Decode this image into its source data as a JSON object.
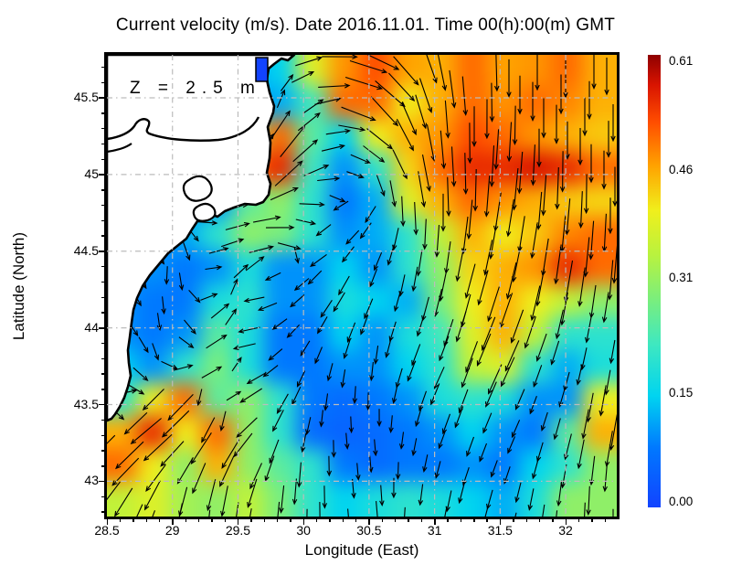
{
  "chart_data": {
    "type": "heatmap",
    "title": "Current velocity (m/s). Date 2016.11.01. Time 00(h):00(m) GMT",
    "units": "m/s",
    "depth_annotation": "Z = 2.5 m",
    "xlabel": "Longitude (East)",
    "ylabel": "Latitude (North)",
    "x_ticks": [
      28.5,
      29,
      29.5,
      30,
      30.5,
      31,
      31.5,
      32
    ],
    "y_ticks": [
      45.5,
      45,
      44.5,
      44,
      43.5,
      43
    ],
    "xlim": [
      28.5,
      32.39
    ],
    "ylim": [
      42.77,
      45.78
    ],
    "grid_on": true,
    "overlay": "black arrows show current direction/speed; white land mask with Danube delta coastline in upper left; dash-dot gray graticule every 0.5 degree",
    "colorbar": {
      "min": 0.0,
      "max": 0.61,
      "tick_labels_top_to_bottom": [
        "0.61",
        "0.46",
        "0.31",
        "0.15",
        "0.00"
      ],
      "colormap_stops": [
        [
          0.0,
          "#1243ff"
        ],
        [
          0.08,
          "#0078ff"
        ],
        [
          0.15,
          "#00d4f0"
        ],
        [
          0.22,
          "#3fe8c0"
        ],
        [
          0.28,
          "#7aee7d"
        ],
        [
          0.34,
          "#b8f23f"
        ],
        [
          0.4,
          "#f0ef1c"
        ],
        [
          0.46,
          "#ffa300"
        ],
        [
          0.52,
          "#ff4d00"
        ],
        [
          0.57,
          "#d81400"
        ],
        [
          0.61,
          "#8f0000"
        ]
      ]
    },
    "grid_lon": [
      28.62,
      28.86,
      29.1,
      29.35,
      29.59,
      29.83,
      30.08,
      30.32,
      30.56,
      30.81,
      31.05,
      31.29,
      31.54,
      31.78,
      32.02,
      32.27
    ],
    "grid_lat": [
      45.67,
      45.46,
      45.24,
      45.02,
      44.81,
      44.59,
      44.38,
      44.16,
      43.95,
      43.73,
      43.52,
      43.3,
      43.09,
      42.87
    ],
    "speed_grid": [
      [
        0.1,
        0.1,
        0.1,
        0.1,
        0.12,
        0.15,
        0.38,
        0.47,
        0.52,
        0.46,
        0.45,
        0.5,
        0.46,
        0.47,
        0.5,
        0.45
      ],
      [
        0.1,
        0.1,
        0.1,
        0.1,
        0.1,
        0.12,
        0.22,
        0.5,
        0.5,
        0.4,
        0.45,
        0.5,
        0.47,
        0.5,
        0.48,
        0.45
      ],
      [
        0.1,
        0.1,
        0.1,
        0.1,
        0.3,
        0.5,
        0.25,
        0.15,
        0.4,
        0.45,
        0.47,
        0.52,
        0.5,
        0.47,
        0.45,
        0.43
      ],
      [
        0.1,
        0.1,
        0.1,
        0.1,
        0.5,
        0.55,
        0.22,
        0.1,
        0.2,
        0.42,
        0.5,
        0.55,
        0.55,
        0.57,
        0.55,
        0.5
      ],
      [
        0.1,
        0.1,
        0.1,
        0.1,
        0.25,
        0.3,
        0.2,
        0.08,
        0.12,
        0.38,
        0.45,
        0.5,
        0.47,
        0.45,
        0.43,
        0.42
      ],
      [
        0.1,
        0.1,
        0.12,
        0.2,
        0.3,
        0.28,
        0.2,
        0.1,
        0.12,
        0.2,
        0.35,
        0.45,
        0.4,
        0.43,
        0.48,
        0.5
      ],
      [
        0.1,
        0.1,
        0.08,
        0.1,
        0.18,
        0.1,
        0.1,
        0.15,
        0.1,
        0.2,
        0.3,
        0.42,
        0.45,
        0.47,
        0.55,
        0.5
      ],
      [
        0.1,
        0.08,
        0.08,
        0.18,
        0.2,
        0.1,
        0.1,
        0.18,
        0.15,
        0.12,
        0.28,
        0.4,
        0.45,
        0.4,
        0.35,
        0.3
      ],
      [
        0.1,
        0.08,
        0.1,
        0.25,
        0.18,
        0.08,
        0.08,
        0.15,
        0.1,
        0.18,
        0.22,
        0.38,
        0.45,
        0.35,
        0.2,
        0.2
      ],
      [
        0.15,
        0.1,
        0.2,
        0.28,
        0.18,
        0.08,
        0.08,
        0.1,
        0.1,
        0.15,
        0.2,
        0.35,
        0.38,
        0.2,
        0.12,
        0.18
      ],
      [
        0.2,
        0.4,
        0.5,
        0.25,
        0.3,
        0.2,
        0.08,
        0.06,
        0.08,
        0.1,
        0.18,
        0.2,
        0.18,
        0.1,
        0.1,
        0.4
      ],
      [
        0.45,
        0.55,
        0.4,
        0.5,
        0.3,
        0.2,
        0.06,
        0.05,
        0.06,
        0.08,
        0.1,
        0.15,
        0.1,
        0.08,
        0.25,
        0.45
      ],
      [
        0.5,
        0.4,
        0.3,
        0.45,
        0.3,
        0.25,
        0.2,
        0.08,
        0.06,
        0.08,
        0.08,
        0.1,
        0.08,
        0.15,
        0.2,
        0.3
      ],
      [
        0.35,
        0.38,
        0.32,
        0.3,
        0.35,
        0.28,
        0.2,
        0.15,
        0.18,
        0.2,
        0.18,
        0.15,
        0.12,
        0.18,
        0.3,
        0.3
      ]
    ],
    "direction_deg_grid": [
      [
        0,
        0,
        0,
        0,
        20,
        45,
        10,
        -10,
        -30,
        -60,
        -80,
        -85,
        -90,
        -90,
        -90,
        -90
      ],
      [
        0,
        0,
        0,
        0,
        40,
        70,
        30,
        -20,
        -50,
        -70,
        -85,
        -90,
        -90,
        -90,
        -90,
        -90
      ],
      [
        0,
        0,
        0,
        50,
        60,
        55,
        20,
        0,
        -40,
        -70,
        -85,
        -90,
        -95,
        -90,
        -90,
        -90
      ],
      [
        0,
        0,
        0,
        50,
        55,
        50,
        15,
        -5,
        -60,
        -75,
        -85,
        -90,
        -95,
        -95,
        -90,
        -90
      ],
      [
        0,
        0,
        0,
        20,
        30,
        10,
        -10,
        -150,
        -120,
        -85,
        -90,
        -95,
        -100,
        -95,
        -95,
        -90
      ],
      [
        0,
        0,
        -70,
        20,
        5,
        -10,
        -160,
        -140,
        -120,
        -100,
        -95,
        -100,
        -100,
        -100,
        -95,
        -95
      ],
      [
        0,
        -100,
        -80,
        30,
        40,
        -150,
        -140,
        -120,
        -110,
        -100,
        -100,
        -105,
        -105,
        -100,
        -100,
        -95
      ],
      [
        -60,
        -90,
        -60,
        45,
        -170,
        -150,
        -130,
        -120,
        -110,
        -105,
        -105,
        -105,
        -110,
        -105,
        -100,
        -100
      ],
      [
        -45,
        -80,
        -45,
        40,
        -170,
        -140,
        -120,
        -110,
        -100,
        -110,
        -110,
        -110,
        -115,
        -110,
        -105,
        -100
      ],
      [
        -30,
        -60,
        30,
        35,
        -160,
        -130,
        -110,
        -100,
        -95,
        -110,
        -115,
        -110,
        -115,
        -110,
        -105,
        -100
      ],
      [
        20,
        -140,
        -135,
        30,
        -150,
        -120,
        -100,
        -90,
        -90,
        -105,
        -110,
        -110,
        -115,
        -110,
        -105,
        -100
      ],
      [
        -135,
        -140,
        -135,
        -120,
        -130,
        -110,
        -95,
        -85,
        -85,
        -100,
        -110,
        -110,
        -115,
        -110,
        -105,
        -100
      ],
      [
        -135,
        -130,
        -120,
        -110,
        -120,
        -100,
        -90,
        -85,
        -85,
        -95,
        -105,
        -110,
        -110,
        -105,
        -100,
        -95
      ],
      [
        -120,
        -110,
        -100,
        -95,
        -100,
        -95,
        -90,
        -85,
        -85,
        -95,
        -100,
        -105,
        -105,
        -100,
        -95,
        -90
      ]
    ]
  }
}
